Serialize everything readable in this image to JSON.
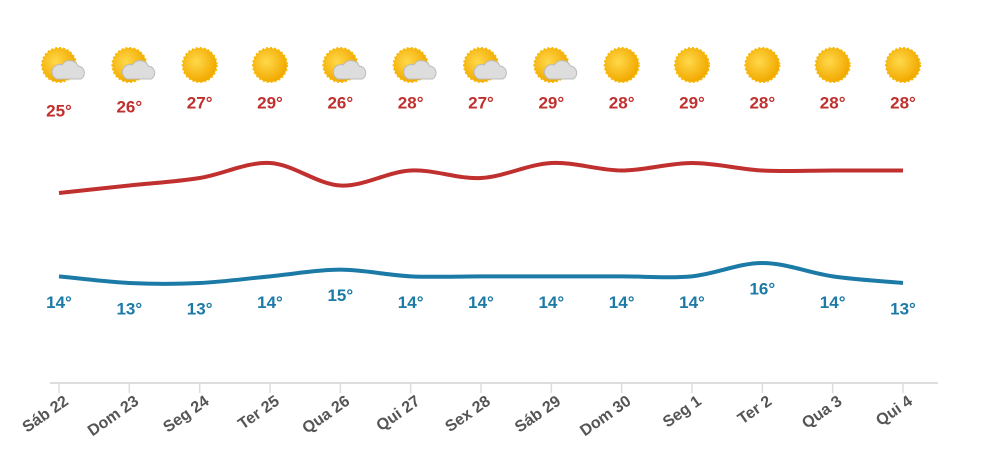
{
  "chart_data": {
    "type": "line",
    "categories": [
      "Sáb 22",
      "Dom 23",
      "Seg 24",
      "Ter 25",
      "Qua 26",
      "Qui 27",
      "Sex 28",
      "Sáb 29",
      "Dom 30",
      "Seg 1",
      "Ter 2",
      "Qua 3",
      "Qui 4"
    ],
    "series": [
      {
        "color": "#c0302e",
        "values": [
          25,
          26,
          27,
          29,
          26,
          28,
          27,
          29,
          28,
          29,
          28,
          28,
          28
        ],
        "value_labels": [
          "25°",
          "26°",
          "27°",
          "29°",
          "26°",
          "28°",
          "27°",
          "29°",
          "28°",
          "29°",
          "28°",
          "28°",
          "28°"
        ]
      },
      {
        "color": "#1c7aa6",
        "values": [
          14,
          13,
          13,
          14,
          15,
          14,
          14,
          14,
          14,
          14,
          16,
          14,
          13
        ],
        "value_labels": [
          "14°",
          "13°",
          "13°",
          "14°",
          "15°",
          "14°",
          "14°",
          "14°",
          "14°",
          "14°",
          "16°",
          "14°",
          "13°"
        ]
      }
    ]
  }
}
